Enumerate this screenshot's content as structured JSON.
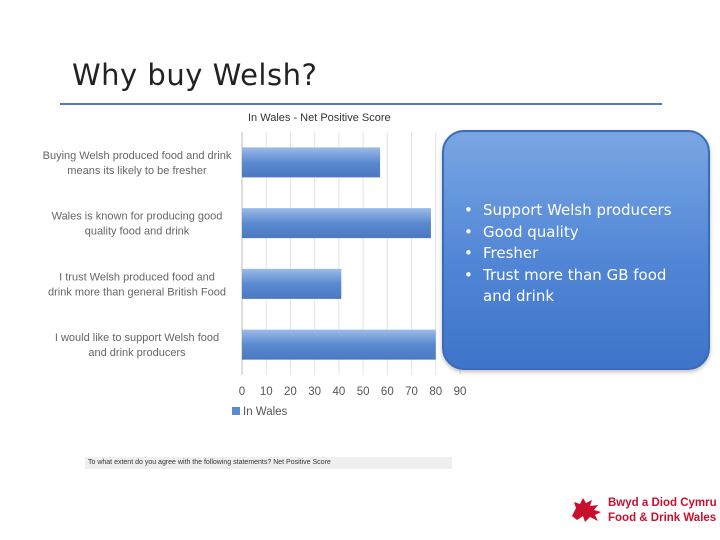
{
  "slide": {
    "title": "Why buy Welsh?",
    "source_note": "To what extent do you agree with the following statements? Net Positive Score"
  },
  "callout": {
    "bullets": [
      "Support Welsh producers",
      "Good quality",
      "Fresher",
      "Trust more than GB food and drink"
    ]
  },
  "logo": {
    "line1": "Bwyd a Diod Cymru",
    "line2": "Food & Drink Wales"
  },
  "colors": {
    "bar": "#5b8ad0",
    "callout": "#5186d6",
    "rule": "#4f7bbf",
    "logo": "#c8102e"
  },
  "chart_data": {
    "type": "bar",
    "orientation": "horizontal",
    "title": "In Wales - Net Positive Score",
    "categories": [
      "Buying Welsh produced food and drink means its likely to be fresher",
      "Wales is known for producing good quality food and drink",
      "I trust Welsh produced food and drink more than general British Food",
      "I would like to support Welsh food and drink producers"
    ],
    "series": [
      {
        "name": "In Wales",
        "values": [
          57,
          78,
          41,
          80
        ]
      }
    ],
    "xlim": [
      0,
      90
    ],
    "xticks": [
      "0",
      "10",
      "20",
      "30",
      "40",
      "50",
      "60",
      "70",
      "80",
      "90"
    ],
    "grid": true,
    "legend": "bottom-left"
  }
}
